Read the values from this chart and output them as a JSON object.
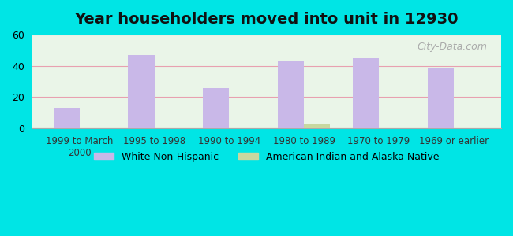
{
  "title": "Year householders moved into unit in 12930",
  "categories": [
    "1999 to March\n2000",
    "1995 to 1998",
    "1990 to 1994",
    "1980 to 1989",
    "1970 to 1979",
    "1969 or earlier"
  ],
  "white_non_hispanic": [
    13,
    47,
    26,
    43,
    45,
    39
  ],
  "american_indian": [
    0,
    0,
    0,
    3,
    0,
    0
  ],
  "bar_color_white": "#c9b8e8",
  "bar_color_indian": "#c8d8a0",
  "ylim": [
    0,
    60
  ],
  "yticks": [
    0,
    20,
    40,
    60
  ],
  "outer_bg": "#00e5e5",
  "grid_color": "#e8a0b0",
  "watermark": "City-Data.com"
}
